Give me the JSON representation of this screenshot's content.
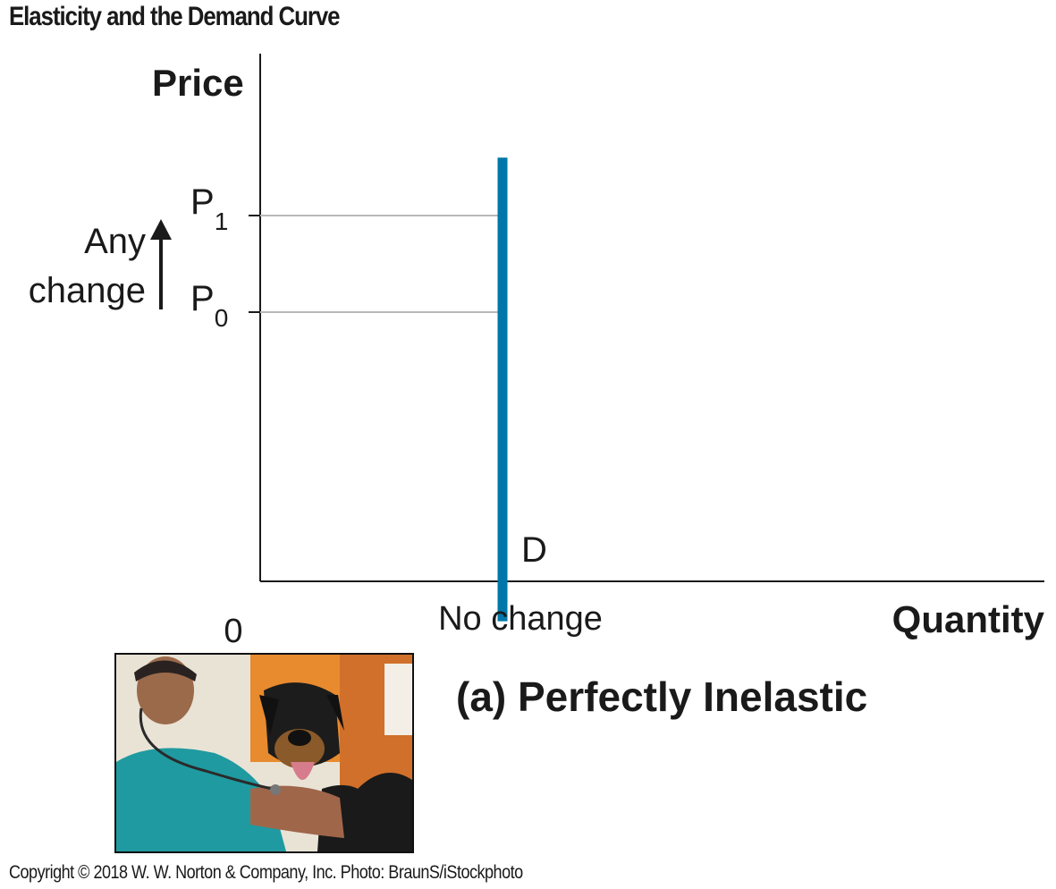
{
  "page": {
    "title": "Elasticity and the Demand Curve",
    "caption": "(a) Perfectly Inelastic",
    "copyright": "Copyright © 2018 W. W. Norton & Company, Inc. Photo: BraunS/iStockphoto"
  },
  "chart_data": {
    "type": "line",
    "ylabel": "Price",
    "xlabel": "Quantity",
    "origin_label": "0",
    "x_tick_labels": [
      "No change"
    ],
    "y_ticks": [
      {
        "label": "P",
        "sub": "1",
        "value": 1
      },
      {
        "label": "P",
        "sub": "0",
        "value": 0
      }
    ],
    "series": [
      {
        "name": "D",
        "x": [
          1,
          1
        ],
        "y": [
          -3.2,
          1.6
        ]
      }
    ],
    "annotation": {
      "lines": [
        "Any",
        "change"
      ],
      "arrow": "up"
    },
    "grid": false,
    "colors": {
      "demand": "#0077a8",
      "guide": "#b8b8b8",
      "axis": "#1a1a1a"
    }
  }
}
